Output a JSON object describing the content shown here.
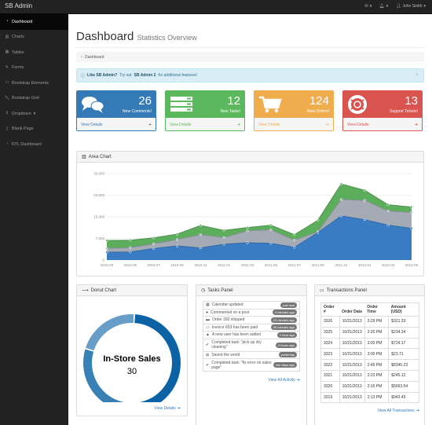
{
  "brand": "SB Admin",
  "topnav": {
    "user": "John Smith"
  },
  "sidebar": {
    "items": [
      {
        "label": "Dashboard",
        "icon": "dashboard-icon",
        "active": true
      },
      {
        "label": "Charts",
        "icon": "bar-chart-icon"
      },
      {
        "label": "Tables",
        "icon": "table-icon"
      },
      {
        "label": "Forms",
        "icon": "edit-icon"
      },
      {
        "label": "Bootstrap Elements",
        "icon": "desktop-icon"
      },
      {
        "label": "Bootstrap Grid",
        "icon": "wrench-icon"
      },
      {
        "label": "Dropdown",
        "icon": "arrows-icon"
      },
      {
        "label": "Blank Page",
        "icon": "file-icon"
      },
      {
        "label": "RTL Dashboard",
        "icon": "dashboard-icon"
      }
    ]
  },
  "page": {
    "title": "Dashboard",
    "subtitle": "Statistics Overview",
    "breadcrumb": "Dashboard"
  },
  "alert": {
    "strong": "Like SB Admin?",
    "text1": "Try out",
    "strong2": "SB Admin 2",
    "text2": "for additional features!",
    "close": "×"
  },
  "stats": [
    {
      "value": "26",
      "label": "New Comments!",
      "footer": "View Details",
      "color": "#337ab7",
      "icon": "comments-icon"
    },
    {
      "value": "12",
      "label": "New Tasks!",
      "footer": "View Details",
      "color": "#5cb85c",
      "icon": "tasks-icon"
    },
    {
      "value": "124",
      "label": "New Orders!",
      "footer": "View Details",
      "color": "#f0ad4e",
      "icon": "shopping-cart-icon"
    },
    {
      "value": "13",
      "label": "Support Tickets!",
      "footer": "View Details",
      "color": "#d9534f",
      "icon": "support-icon"
    }
  ],
  "area_panel": {
    "title": "Area Chart"
  },
  "chart_data": [
    {
      "type": "area",
      "title": "Area Chart",
      "x": [
        "2010-03",
        "2010-05",
        "2010-07",
        "2010-09",
        "2010-11",
        "2011-01",
        "2011-03",
        "2011-05",
        "2011-07",
        "2011-09",
        "2011-11",
        "2012-01",
        "2012-03",
        "2012-05"
      ],
      "series": [
        {
          "values": [
            2700,
            2800,
            4000,
            4900,
            4200,
            5500,
            6000,
            5800,
            4400,
            9500,
            15300,
            14000,
            12100,
            11000
          ],
          "color": "#3a7cc3"
        },
        {
          "values": [
            4000,
            4300,
            5600,
            7100,
            8800,
            7800,
            10100,
            10500,
            6900,
            9800,
            21000,
            20700,
            17000,
            16500
          ],
          "color": "#a4abb4"
        },
        {
          "values": [
            6800,
            6900,
            7700,
            9000,
            12000,
            10300,
            11300,
            12100,
            8800,
            13800,
            26400,
            24200,
            19200,
            18400
          ],
          "color": "#5cad5c"
        }
      ],
      "xlabel": "",
      "ylabel": "",
      "yticks": [
        0,
        7500,
        15000,
        22500,
        30000
      ],
      "ytick_labels": [
        "0",
        "7,500",
        "15,000",
        "22,500",
        "30,000"
      ],
      "ylim": [
        0,
        30000
      ],
      "grid": true
    },
    {
      "type": "pie",
      "title": "Donut Chart",
      "center_label": "In-Store Sales",
      "center_value": "30",
      "values": [
        49,
        30,
        21
      ],
      "colors": [
        "#0b62a4",
        "#3980b5",
        "#679dc6"
      ]
    }
  ],
  "donut": {
    "title": "Donut Chart",
    "label": "In-Store Sales",
    "value": "30",
    "link": "View Details"
  },
  "tasks": {
    "title": "Tasks Panel",
    "link": "View All Activity",
    "items": [
      {
        "text": "Calendar updated",
        "badge": "just now",
        "icon": "calendar-icon"
      },
      {
        "text": "Commented on a post",
        "badge": "4 minutes ago",
        "icon": "comment-icon"
      },
      {
        "text": "Order 392 shipped",
        "badge": "23 minutes ago",
        "icon": "truck-icon"
      },
      {
        "text": "Invoice 653 has been paid",
        "badge": "46 minutes ago",
        "icon": "money-icon"
      },
      {
        "text": "A new user has been added",
        "badge": "1 hour ago",
        "icon": "user-icon"
      },
      {
        "text": "Completed task: \"pick up dry cleaning\"",
        "badge": "2 hours ago",
        "icon": "check-icon",
        "tall": true
      },
      {
        "text": "Saved the world",
        "badge": "yesterday",
        "icon": "globe-icon"
      },
      {
        "text": "Completed task: \"fix error on sales page\"",
        "badge": "two days ago",
        "icon": "check-icon",
        "tall": true
      }
    ]
  },
  "transactions": {
    "title": "Transactions Panel",
    "link": "View All Transactions",
    "headers": [
      "Order #",
      "Order Date",
      "Order Time",
      "Amount (USD)"
    ],
    "rows": [
      [
        "3326",
        "10/21/2013",
        "3:29 PM",
        "$321.33"
      ],
      [
        "3325",
        "10/21/2013",
        "3:20 PM",
        "$234.34"
      ],
      [
        "3324",
        "10/21/2013",
        "3:03 PM",
        "$724.17"
      ],
      [
        "3323",
        "10/21/2013",
        "3:00 PM",
        "$23.71"
      ],
      [
        "3322",
        "10/21/2013",
        "2:49 PM",
        "$8345.23"
      ],
      [
        "3321",
        "10/21/2013",
        "2:23 PM",
        "$245.12"
      ],
      [
        "3320",
        "10/21/2013",
        "2:15 PM",
        "$5663.54"
      ],
      [
        "3319",
        "10/21/2013",
        "2:13 PM",
        "$943.45"
      ]
    ]
  }
}
